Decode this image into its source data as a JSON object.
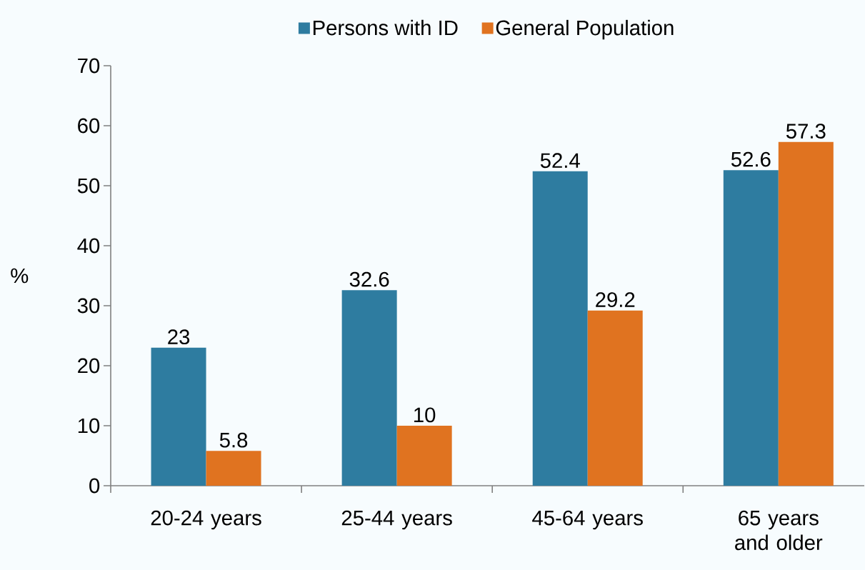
{
  "chart_data": {
    "type": "bar",
    "ylabel": "%",
    "categories": [
      "20-24 years",
      "25-44 years",
      "45-64 years",
      "65 years and older"
    ],
    "series": [
      {
        "name": "Persons with ID",
        "color": "#2e7ca0",
        "values": [
          23,
          32.6,
          52.4,
          52.6
        ]
      },
      {
        "name": "General Population",
        "color": "#e07320",
        "values": [
          5.8,
          10,
          29.2,
          57.3
        ]
      }
    ],
    "ylim": [
      0,
      70
    ],
    "yticks": [
      0,
      10,
      20,
      30,
      40,
      50,
      60,
      70
    ],
    "data_labels": true,
    "legend": "top",
    "grid": false
  }
}
